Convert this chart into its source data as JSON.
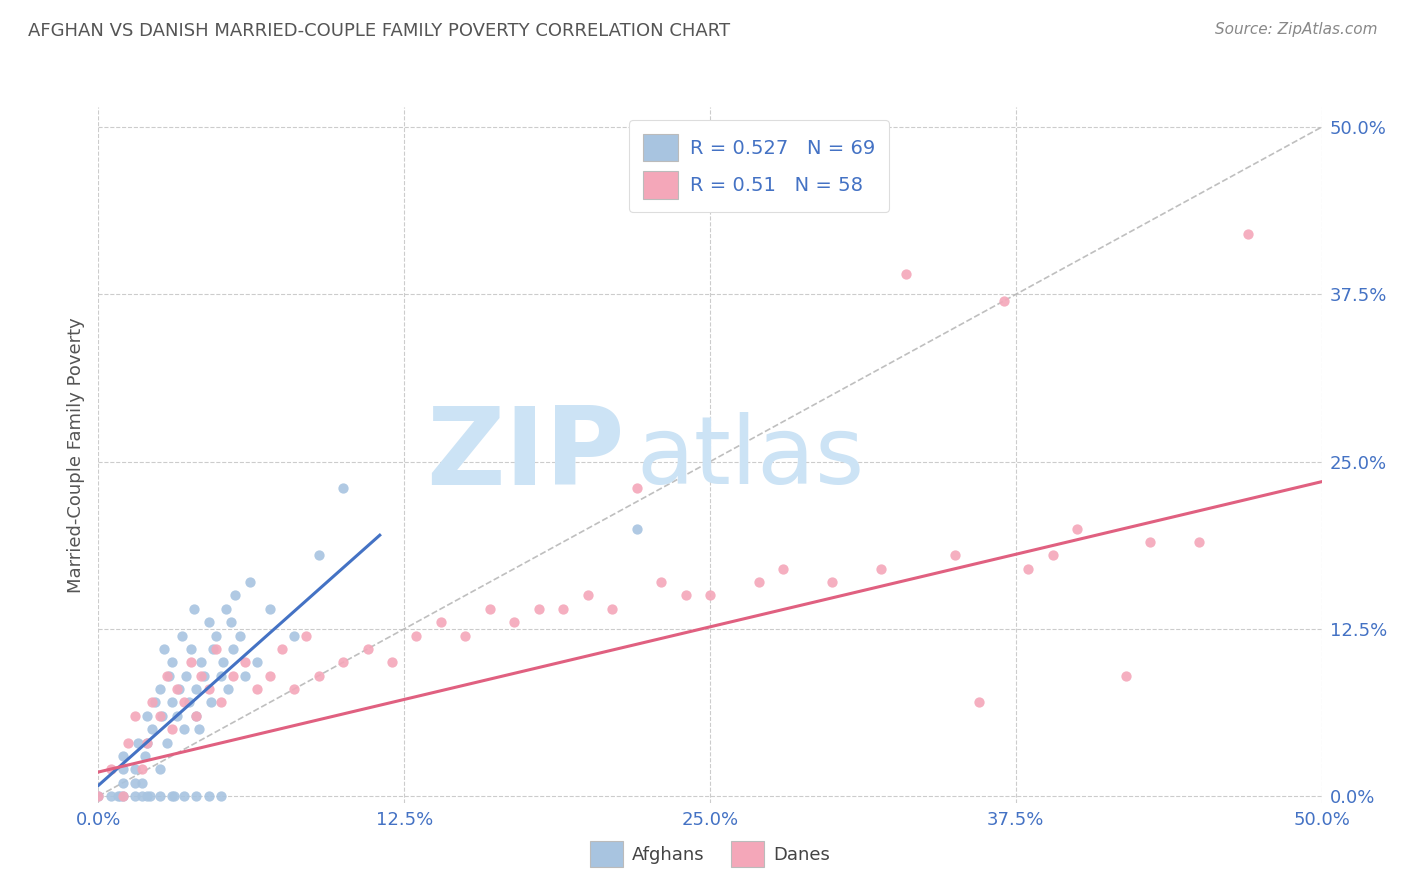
{
  "title": "AFGHAN VS DANISH MARRIED-COUPLE FAMILY POVERTY CORRELATION CHART",
  "source": "Source: ZipAtlas.com",
  "ylabel": "Married-Couple Family Poverty",
  "xlim": [
    0.0,
    0.5
  ],
  "ylim": [
    -0.005,
    0.515
  ],
  "afghan_color": "#a8c4e0",
  "danish_color": "#f4a7b9",
  "afghan_R": 0.527,
  "afghan_N": 69,
  "danish_R": 0.51,
  "danish_N": 58,
  "afghan_line_color": "#4472c4",
  "danish_line_color": "#e06080",
  "diagonal_color": "#b8b8b8",
  "watermark_zip": "ZIP",
  "watermark_atlas": "atlas",
  "watermark_color": "#cce3f5",
  "legend_label_afghans": "Afghans",
  "legend_label_danes": "Danes",
  "tick_values": [
    0.0,
    0.125,
    0.25,
    0.375,
    0.5
  ],
  "tick_labels": [
    "0.0%",
    "12.5%",
    "25.0%",
    "37.5%",
    "50.0%"
  ],
  "afghan_x": [
    0.0,
    0.005,
    0.008,
    0.009,
    0.01,
    0.01,
    0.01,
    0.01,
    0.015,
    0.015,
    0.015,
    0.016,
    0.018,
    0.018,
    0.019,
    0.02,
    0.02,
    0.02,
    0.021,
    0.022,
    0.023,
    0.025,
    0.025,
    0.025,
    0.026,
    0.027,
    0.028,
    0.029,
    0.03,
    0.03,
    0.03,
    0.031,
    0.032,
    0.033,
    0.034,
    0.035,
    0.035,
    0.036,
    0.037,
    0.038,
    0.039,
    0.04,
    0.04,
    0.04,
    0.041,
    0.042,
    0.043,
    0.045,
    0.045,
    0.046,
    0.047,
    0.048,
    0.05,
    0.05,
    0.051,
    0.052,
    0.053,
    0.054,
    0.055,
    0.056,
    0.058,
    0.06,
    0.062,
    0.065,
    0.07,
    0.08,
    0.09,
    0.1,
    0.22
  ],
  "afghan_y": [
    0.0,
    0.0,
    0.0,
    0.0,
    0.0,
    0.01,
    0.02,
    0.03,
    0.0,
    0.01,
    0.02,
    0.04,
    0.0,
    0.01,
    0.03,
    0.0,
    0.04,
    0.06,
    0.0,
    0.05,
    0.07,
    0.0,
    0.02,
    0.08,
    0.06,
    0.11,
    0.04,
    0.09,
    0.0,
    0.07,
    0.1,
    0.0,
    0.06,
    0.08,
    0.12,
    0.0,
    0.05,
    0.09,
    0.07,
    0.11,
    0.14,
    0.0,
    0.06,
    0.08,
    0.05,
    0.1,
    0.09,
    0.13,
    0.0,
    0.07,
    0.11,
    0.12,
    0.0,
    0.09,
    0.1,
    0.14,
    0.08,
    0.13,
    0.11,
    0.15,
    0.12,
    0.09,
    0.16,
    0.1,
    0.14,
    0.12,
    0.18,
    0.23,
    0.2
  ],
  "danish_x": [
    0.0,
    0.005,
    0.01,
    0.012,
    0.015,
    0.018,
    0.02,
    0.022,
    0.025,
    0.028,
    0.03,
    0.032,
    0.035,
    0.038,
    0.04,
    0.042,
    0.045,
    0.048,
    0.05,
    0.055,
    0.06,
    0.065,
    0.07,
    0.075,
    0.08,
    0.085,
    0.09,
    0.1,
    0.11,
    0.12,
    0.13,
    0.14,
    0.15,
    0.16,
    0.17,
    0.18,
    0.19,
    0.2,
    0.21,
    0.22,
    0.23,
    0.24,
    0.25,
    0.27,
    0.28,
    0.3,
    0.32,
    0.33,
    0.35,
    0.36,
    0.37,
    0.38,
    0.39,
    0.4,
    0.42,
    0.43,
    0.45,
    0.47
  ],
  "danish_y": [
    0.0,
    0.02,
    0.0,
    0.04,
    0.06,
    0.02,
    0.04,
    0.07,
    0.06,
    0.09,
    0.05,
    0.08,
    0.07,
    0.1,
    0.06,
    0.09,
    0.08,
    0.11,
    0.07,
    0.09,
    0.1,
    0.08,
    0.09,
    0.11,
    0.08,
    0.12,
    0.09,
    0.1,
    0.11,
    0.1,
    0.12,
    0.13,
    0.12,
    0.14,
    0.13,
    0.14,
    0.14,
    0.15,
    0.14,
    0.23,
    0.16,
    0.15,
    0.15,
    0.16,
    0.17,
    0.16,
    0.17,
    0.39,
    0.18,
    0.07,
    0.37,
    0.17,
    0.18,
    0.2,
    0.09,
    0.19,
    0.19,
    0.42
  ],
  "afghan_line_x": [
    0.0,
    0.115
  ],
  "afghan_line_y": [
    0.008,
    0.195
  ],
  "danish_line_x": [
    0.0,
    0.5
  ],
  "danish_line_y": [
    0.018,
    0.235
  ],
  "diag_line_x": [
    0.0,
    0.5
  ],
  "diag_line_y": [
    0.0,
    0.5
  ],
  "background_color": "#ffffff",
  "grid_color": "#cccccc",
  "title_color": "#555555",
  "tick_color": "#4472c4"
}
